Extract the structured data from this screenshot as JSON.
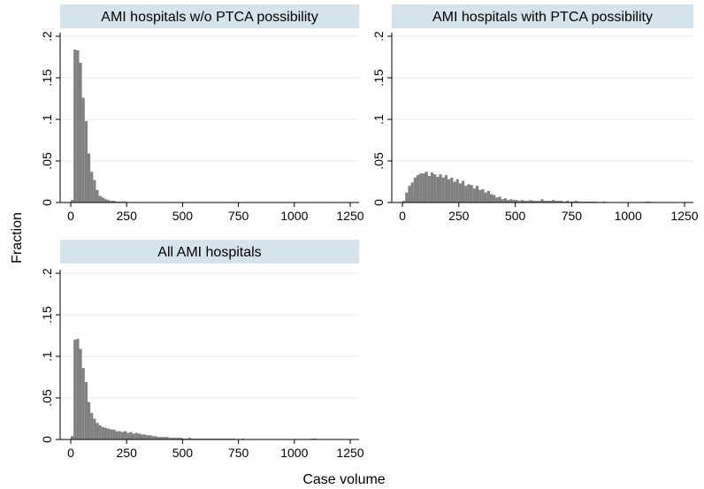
{
  "chart_data": {
    "type": "bar",
    "subtype": "histogram",
    "layout": "3 panels by group (2 columns x 2 rows)",
    "xlabel": "Case volume",
    "ylabel": "Fraction",
    "xlim": [
      0,
      1250
    ],
    "ylim": [
      0,
      0.2
    ],
    "x_ticks": [
      0,
      250,
      500,
      750,
      1000,
      1250
    ],
    "x_tick_labels": [
      "0",
      "250",
      "500",
      "750",
      "1000",
      "1250"
    ],
    "y_ticks": [
      0,
      0.05,
      0.1,
      0.15,
      0.2
    ],
    "y_tick_labels": [
      "0",
      ".05",
      ".1",
      ".15",
      ".2"
    ],
    "grid": "horizontal",
    "bar_color": "#808080",
    "title_strip_color": "#d4e4ea",
    "bin_width": 12.5,
    "panels": [
      {
        "title": "AMI hospitals w/o PTCA possibility",
        "bins_start": 0,
        "values": [
          0.003,
          0.184,
          0.183,
          0.168,
          0.126,
          0.098,
          0.059,
          0.037,
          0.027,
          0.015,
          0.008,
          0.006,
          0.004,
          0.003,
          0.002,
          0.002,
          0.001,
          0.001,
          0.001,
          0.001
        ]
      },
      {
        "title": "AMI hospitals with PTCA possibility",
        "bins_start": 0,
        "values": [
          0.002,
          0.012,
          0.02,
          0.024,
          0.03,
          0.033,
          0.035,
          0.035,
          0.037,
          0.032,
          0.036,
          0.034,
          0.031,
          0.034,
          0.03,
          0.033,
          0.028,
          0.03,
          0.025,
          0.028,
          0.023,
          0.026,
          0.02,
          0.022,
          0.021,
          0.017,
          0.02,
          0.015,
          0.016,
          0.012,
          0.014,
          0.01,
          0.009,
          0.006,
          0.007,
          0.004,
          0.005,
          0.003,
          0.004,
          0.003,
          0.003,
          0.002,
          0.003,
          0.002,
          0.002,
          0.003,
          0.002,
          0.002,
          0.002,
          0.004,
          0.002,
          0.002,
          0.002,
          0.003,
          0.002,
          0.002,
          0.002,
          0.001,
          0.002,
          0.001,
          0.001,
          0.002,
          0.001,
          0.001,
          0.001,
          0.001,
          0.001,
          0.001,
          0.001,
          0.0,
          0.0,
          0.001,
          0.0,
          0.0,
          0.0,
          0.0,
          0.0,
          0.0,
          0.0,
          0.0,
          0.0,
          0.0,
          0.0,
          0.0,
          0.0,
          0.0,
          0.001,
          0.001
        ]
      },
      {
        "title": "All AMI hospitals",
        "bins_start": 0,
        "values": [
          0.004,
          0.12,
          0.121,
          0.109,
          0.086,
          0.069,
          0.045,
          0.032,
          0.025,
          0.02,
          0.017,
          0.015,
          0.014,
          0.013,
          0.012,
          0.012,
          0.01,
          0.01,
          0.009,
          0.01,
          0.008,
          0.009,
          0.007,
          0.008,
          0.007,
          0.006,
          0.006,
          0.005,
          0.005,
          0.004,
          0.004,
          0.003,
          0.003,
          0.003,
          0.003,
          0.002,
          0.002,
          0.002,
          0.002,
          0.002,
          0.001,
          0.001,
          0.002,
          0.001,
          0.001,
          0.001,
          0.001,
          0.001,
          0.001,
          0.001,
          0.001,
          0.001,
          0.001,
          0.001,
          0.001,
          0.001,
          0.001,
          0.001,
          0.001,
          0.0,
          0.0,
          0.001,
          0.0,
          0.0,
          0.0,
          0.0,
          0.0,
          0.0,
          0.0,
          0.0,
          0.0,
          0.0,
          0.0,
          0.0,
          0.0,
          0.0,
          0.0,
          0.0,
          0.0,
          0.0,
          0.0,
          0.0,
          0.0,
          0.0,
          0.0,
          0.0,
          0.001,
          0.001
        ]
      }
    ]
  }
}
